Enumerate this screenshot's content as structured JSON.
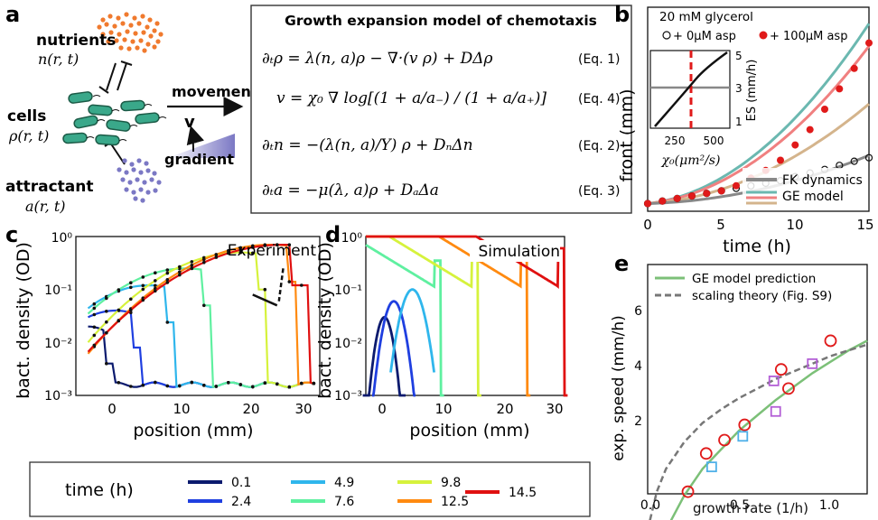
{
  "panels": {
    "a": {
      "letter": "a",
      "nutrients": {
        "label": "nutrients",
        "symbol": "n(r, t)"
      },
      "cells": {
        "label": "cells",
        "symbol": "ρ(r, t)"
      },
      "attractant": {
        "label": "attractant",
        "symbol": "a(r, t)"
      },
      "movement": "movement",
      "velocity": "v",
      "gradient": "gradient",
      "model_box": {
        "title": "Growth expansion model of chemotaxis",
        "equations": [
          {
            "lhs": "∂ₜρ = λ(n, a)ρ − ∇·(v ρ) + DΔρ",
            "tag": "(Eq. 1)"
          },
          {
            "lhs": "v = χ₀ ∇ log[(1 + a/a₋) / (1 + a/a₊)]",
            "tag": "(Eq. 4)"
          },
          {
            "lhs": "∂ₜn = −(λ(n, a)/Y) ρ + DₙΔn",
            "tag": "(Eq. 2)"
          },
          {
            "lhs": "∂ₜa = −μ(λ, a)ρ + DₐΔa",
            "tag": "(Eq. 3)"
          }
        ]
      }
    },
    "b": {
      "letter": "b",
      "legend_title": "20 mM glycerol",
      "legend_open": "+ 0μM asp",
      "legend_filled": "+ 100μM asp",
      "legend_lines": [
        "FK dynamics",
        "GE model"
      ],
      "xlabel": "time (h)",
      "ylabel": "front (mm)",
      "xticks": [
        "0",
        "5",
        "10",
        "15"
      ],
      "inset": {
        "xlabel": "χ₀(μm²/s)",
        "ylabel": "ES (mm/h)",
        "xticks": [
          "250",
          "500"
        ],
        "yticks": [
          "1",
          "3",
          "5"
        ]
      }
    },
    "c": {
      "letter": "c",
      "title": "Experiment",
      "xlabel": "position (mm)",
      "ylabel": "bact. density (OD)",
      "xticks": [
        "0",
        "10",
        "20",
        "30"
      ],
      "yticks": [
        "10⁰",
        "10⁻¹",
        "10⁻²",
        "10⁻³"
      ]
    },
    "d": {
      "letter": "d",
      "title": "Simulation",
      "xlabel": "position (mm)",
      "ylabel": "bact. density (OD)",
      "xticks": [
        "0",
        "10",
        "20",
        "30"
      ],
      "yticks": [
        "10⁰",
        "10⁻¹",
        "10⁻²",
        "10⁻³"
      ]
    },
    "e": {
      "letter": "e",
      "legend": [
        "GE model prediction",
        "scaling theory (Fig. S9)"
      ],
      "xlabel": "growth rate (1/h)",
      "ylabel": "exp. speed (mm/h)",
      "xticks": [
        "0.0",
        "0.5",
        "1.0"
      ],
      "yticks": [
        "2",
        "4",
        "6"
      ]
    }
  },
  "time_legend": {
    "title": "time (h)",
    "entries": [
      {
        "label": "0.1",
        "color": "#0b1a6e"
      },
      {
        "label": "2.4",
        "color": "#1f3fe0"
      },
      {
        "label": "4.9",
        "color": "#2fb6ec"
      },
      {
        "label": "7.6",
        "color": "#5ff0a0"
      },
      {
        "label": "9.8",
        "color": "#d6f23c"
      },
      {
        "label": "12.5",
        "color": "#ff8a10"
      },
      {
        "label": "14.5",
        "color": "#e01010"
      }
    ]
  },
  "chart_data": [
    {
      "id": "b",
      "type": "line",
      "xlabel": "time (h)",
      "ylabel": "front (mm)",
      "xlim": [
        0,
        15
      ],
      "ylim": [
        0,
        40
      ],
      "series": [
        {
          "name": "+ 0μM asp",
          "x": [
            0,
            1,
            2,
            3,
            4,
            5,
            6,
            7,
            8,
            9,
            10,
            11,
            12,
            13,
            14,
            15
          ],
          "y": [
            1.5,
            2,
            2.5,
            3,
            3.5,
            4,
            4.5,
            5,
            5.5,
            6,
            6.8,
            7.5,
            8.2,
            9,
            9.8,
            10.5
          ]
        },
        {
          "name": "+ 100μM asp",
          "x": [
            0,
            1,
            2,
            3,
            4,
            5,
            6,
            7,
            8,
            9,
            10,
            11,
            12,
            13,
            14,
            15
          ],
          "y": [
            1.5,
            2,
            2.5,
            3,
            3.5,
            4,
            5,
            6.5,
            8,
            10,
            13,
            16,
            20,
            24,
            28,
            33
          ]
        }
      ]
    },
    {
      "id": "e",
      "type": "scatter",
      "xlabel": "growth rate (1/h)",
      "ylabel": "exp. speed (mm/h)",
      "xlim": [
        0,
        1.2
      ],
      "ylim": [
        0,
        6
      ],
      "series": [
        {
          "name": "GE model prediction",
          "x": [
            0.1,
            0.2,
            0.3,
            0.4,
            0.5,
            0.6,
            0.7,
            0.8,
            0.9,
            1.0,
            1.1,
            1.2
          ],
          "y": [
            0,
            0.9,
            1.6,
            2.1,
            2.6,
            3.0,
            3.4,
            3.75,
            4.1,
            4.4,
            4.7,
            4.95
          ]
        },
        {
          "name": "scaling theory (Fig. S9)",
          "x": [
            0.0,
            0.05,
            0.1,
            0.2,
            0.3,
            0.4,
            0.5,
            0.6,
            0.7,
            0.8,
            0.9,
            1.0,
            1.1,
            1.2
          ],
          "y": [
            0,
            1.0,
            1.6,
            2.3,
            2.8,
            3.15,
            3.45,
            3.7,
            3.95,
            4.15,
            4.35,
            4.55,
            4.7,
            4.85
          ]
        }
      ]
    }
  ]
}
